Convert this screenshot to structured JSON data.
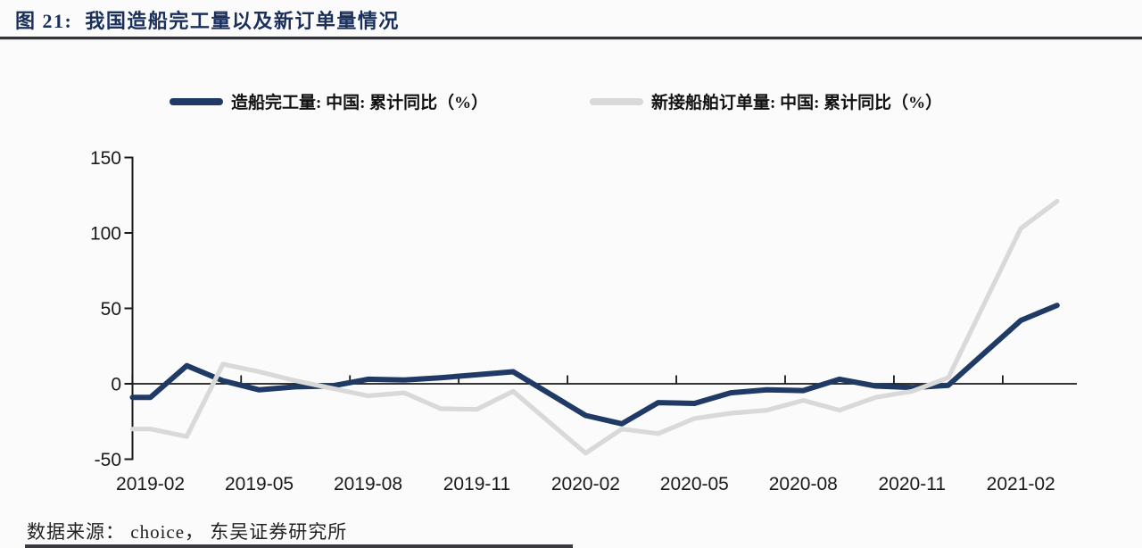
{
  "header": {
    "title": "图 21:  我国造船完工量以及新订单量情况"
  },
  "footer": {
    "source": "数据来源： choice， 东吴证券研究所"
  },
  "colors": {
    "title_navy": "#1a2f5a",
    "line_navy": "#1f3a64",
    "line_gray": "#d9d9d9",
    "axis": "#1a1a1a",
    "background": "#fbfbfc"
  },
  "chart_data": {
    "type": "line",
    "title": "我国造船完工量以及新订单量情况",
    "xlabel": "",
    "ylabel": "",
    "grid": false,
    "legend_position": "top",
    "ylim": [
      -50,
      150
    ],
    "yticks": [
      150,
      100,
      50,
      0,
      -50
    ],
    "x": [
      "2019-02",
      "2019-03",
      "2019-04",
      "2019-05",
      "2019-06",
      "2019-07",
      "2019-08",
      "2019-09",
      "2019-10",
      "2019-11",
      "2019-12",
      "2020-01",
      "2020-02",
      "2020-03",
      "2020-04",
      "2020-05",
      "2020-06",
      "2020-07",
      "2020-08",
      "2020-09",
      "2020-10",
      "2020-11",
      "2020-12",
      "2021-01",
      "2021-02",
      "2021-03"
    ],
    "xticks_shown": [
      "2019-02",
      "2019-05",
      "2019-08",
      "2019-11",
      "2020-02",
      "2020-05",
      "2020-08",
      "2020-11",
      "2021-02"
    ],
    "series": [
      {
        "name": "造船完工量: 中国: 累计同比（%）",
        "color": "#1f3a64",
        "values": [
          -9,
          12,
          2,
          -4,
          -2,
          -1.5,
          3,
          2.5,
          4,
          6,
          8,
          -6.5,
          -21,
          -26.5,
          -12.5,
          -13,
          -6,
          -4,
          -4.5,
          3,
          -1.5,
          -2.5,
          -1,
          20.5,
          42,
          52
        ]
      },
      {
        "name": "新接船舶订单量: 中国: 累计同比（%）",
        "color": "#d9d9d9",
        "values": [
          -30,
          -35,
          13,
          8,
          2,
          -3,
          -8,
          -6,
          -16.5,
          -17,
          -5,
          -25.5,
          -46,
          -30,
          -33,
          -23,
          -19.5,
          -17.5,
          -11,
          -17.5,
          -9,
          -5,
          4,
          53.5,
          103,
          121
        ]
      }
    ]
  }
}
